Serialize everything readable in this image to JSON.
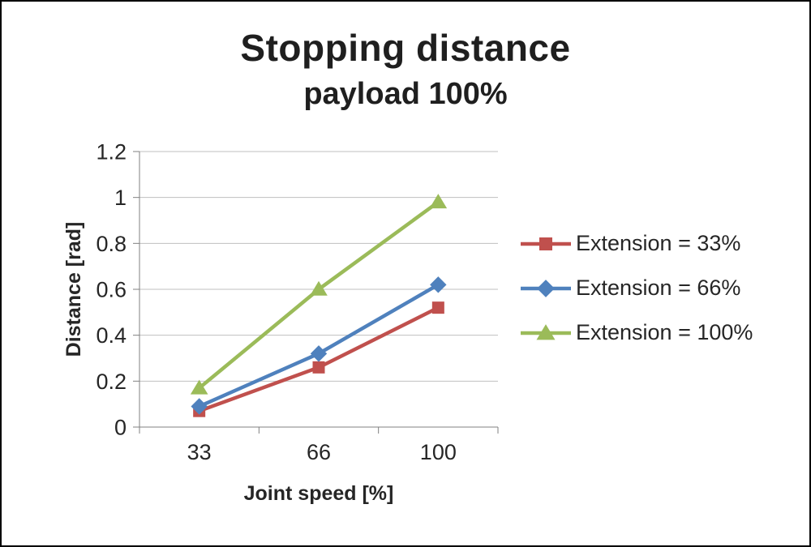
{
  "chart_data": {
    "type": "line",
    "title": "Stopping distance",
    "subtitle": "payload 100%",
    "xlabel": "Joint speed [%]",
    "ylabel": "Distance [rad]",
    "categories": [
      "33",
      "66",
      "100"
    ],
    "ylim": [
      0,
      1.2
    ],
    "yticks": [
      0,
      0.2,
      0.4,
      0.6,
      0.8,
      1,
      1.2
    ],
    "grid": true,
    "legend_position": "right",
    "series": [
      {
        "name": "Extension = 33%",
        "marker": "square",
        "color": "#c0504d",
        "values": [
          0.07,
          0.26,
          0.52
        ]
      },
      {
        "name": "Extension = 66%",
        "marker": "diamond",
        "color": "#4f81bd",
        "values": [
          0.09,
          0.32,
          0.62
        ]
      },
      {
        "name": "Extension = 100%",
        "marker": "triangle",
        "color": "#9bbb59",
        "values": [
          0.17,
          0.6,
          0.98
        ]
      }
    ]
  },
  "colors": {
    "grid": "#bfbfbf",
    "axis": "#808080",
    "text": "#262626",
    "border": "#000000",
    "background": "#ffffff"
  }
}
